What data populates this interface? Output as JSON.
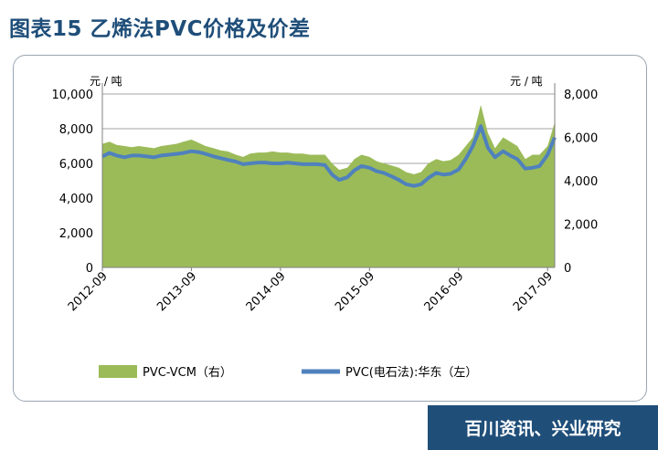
{
  "title": "图表15 乙烯法PVC价格及价差",
  "source": "百川资讯、兴业研究",
  "chart_data": {
    "type": "area+line",
    "left_unit": "元 / 吨",
    "right_unit": "元 / 吨",
    "left_axis": {
      "min": 0,
      "max": 10000,
      "ticks": [
        "0",
        "2,000",
        "4,000",
        "6,000",
        "8,000",
        "10,000"
      ]
    },
    "right_axis": {
      "min": 0,
      "max": 8000,
      "ticks": [
        "0",
        "2,000",
        "4,000",
        "6,000",
        "8,000"
      ]
    },
    "x_ticks": [
      "2012-09",
      "2013-09",
      "2014-09",
      "2015-09",
      "2016-09",
      "2017-09"
    ],
    "gridlines": true,
    "legend_position": "bottom",
    "series": [
      {
        "name": "PVC-VCM（右）",
        "type": "area",
        "axis": "right",
        "color": "#9bbb59",
        "x": [
          2012.67,
          2012.75,
          2012.83,
          2012.92,
          2013.0,
          2013.08,
          2013.17,
          2013.25,
          2013.33,
          2013.42,
          2013.5,
          2013.58,
          2013.67,
          2013.75,
          2013.83,
          2013.92,
          2014.0,
          2014.08,
          2014.17,
          2014.25,
          2014.33,
          2014.42,
          2014.5,
          2014.58,
          2014.67,
          2014.75,
          2014.83,
          2014.92,
          2015.0,
          2015.08,
          2015.17,
          2015.25,
          2015.33,
          2015.42,
          2015.5,
          2015.58,
          2015.67,
          2015.75,
          2015.83,
          2015.92,
          2016.0,
          2016.08,
          2016.17,
          2016.25,
          2016.33,
          2016.42,
          2016.5,
          2016.58,
          2016.67,
          2016.75,
          2016.83,
          2016.92,
          2017.0,
          2017.08,
          2017.17,
          2017.25,
          2017.33,
          2017.42,
          2017.5,
          2017.58,
          2017.67,
          2017.75
        ],
        "values": [
          5700,
          5800,
          5650,
          5600,
          5550,
          5600,
          5550,
          5500,
          5600,
          5650,
          5700,
          5800,
          5900,
          5750,
          5600,
          5500,
          5400,
          5350,
          5200,
          5100,
          5250,
          5300,
          5300,
          5350,
          5300,
          5300,
          5250,
          5250,
          5200,
          5200,
          5200,
          4800,
          4500,
          4600,
          5000,
          5200,
          5100,
          4900,
          4800,
          4700,
          4600,
          4400,
          4300,
          4400,
          4800,
          5000,
          4900,
          4950,
          5200,
          5600,
          6000,
          7500,
          6200,
          5500,
          6000,
          5800,
          5600,
          5000,
          5200,
          5200,
          5600,
          6700
        ]
      },
      {
        "name": "PVC(电石法):华东（左）",
        "type": "line",
        "axis": "left",
        "color": "#4f81bd",
        "x": [
          2012.67,
          2012.75,
          2012.83,
          2012.92,
          2013.0,
          2013.08,
          2013.17,
          2013.25,
          2013.33,
          2013.42,
          2013.5,
          2013.58,
          2013.67,
          2013.75,
          2013.83,
          2013.92,
          2014.0,
          2014.08,
          2014.17,
          2014.25,
          2014.33,
          2014.42,
          2014.5,
          2014.58,
          2014.67,
          2014.75,
          2014.83,
          2014.92,
          2015.0,
          2015.08,
          2015.17,
          2015.25,
          2015.33,
          2015.42,
          2015.5,
          2015.58,
          2015.67,
          2015.75,
          2015.83,
          2015.92,
          2016.0,
          2016.08,
          2016.17,
          2016.25,
          2016.33,
          2016.42,
          2016.5,
          2016.58,
          2016.67,
          2016.75,
          2016.83,
          2016.92,
          2017.0,
          2017.08,
          2017.17,
          2017.25,
          2017.33,
          2017.42,
          2017.5,
          2017.58,
          2017.67,
          2017.75
        ],
        "values": [
          6400,
          6600,
          6450,
          6350,
          6450,
          6450,
          6400,
          6350,
          6450,
          6500,
          6550,
          6600,
          6700,
          6650,
          6550,
          6400,
          6300,
          6200,
          6100,
          5950,
          6000,
          6050,
          6050,
          6000,
          6000,
          6050,
          6000,
          5950,
          5950,
          5950,
          5900,
          5350,
          5050,
          5200,
          5600,
          5850,
          5750,
          5550,
          5450,
          5250,
          5050,
          4800,
          4700,
          4800,
          5150,
          5450,
          5350,
          5400,
          5650,
          6250,
          7000,
          8150,
          6900,
          6350,
          6700,
          6450,
          6250,
          5700,
          5750,
          5850,
          6500,
          7500
        ]
      }
    ]
  }
}
